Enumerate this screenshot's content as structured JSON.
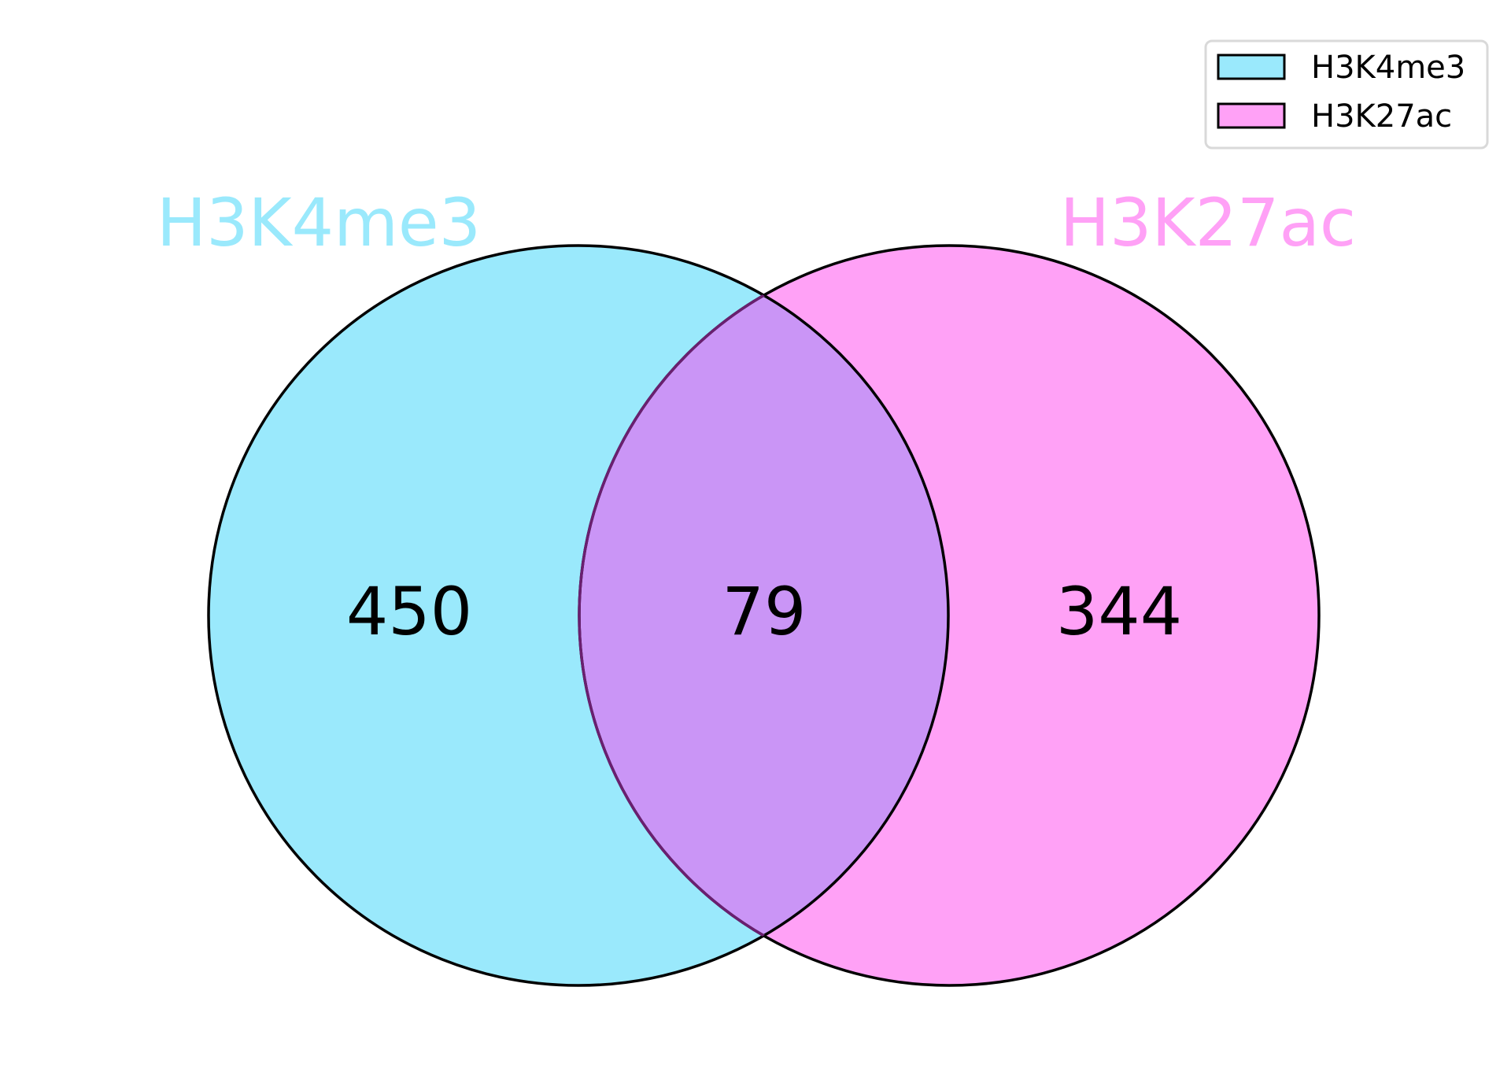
{
  "chart_data": {
    "type": "venn",
    "sets": [
      {
        "name": "H3K4me3",
        "color": "#9AE9FC",
        "only_count": "450"
      },
      {
        "name": "H3K27ac",
        "color": "#FFA1F6",
        "only_count": "344"
      }
    ],
    "intersection": {
      "count": "79",
      "color": "#CA95F6"
    },
    "legend": {
      "position": "top-right",
      "entries": [
        {
          "label": "H3K4me3",
          "color": "#9AE9FC"
        },
        {
          "label": "H3K27ac",
          "color": "#FFA1F6"
        }
      ]
    }
  }
}
